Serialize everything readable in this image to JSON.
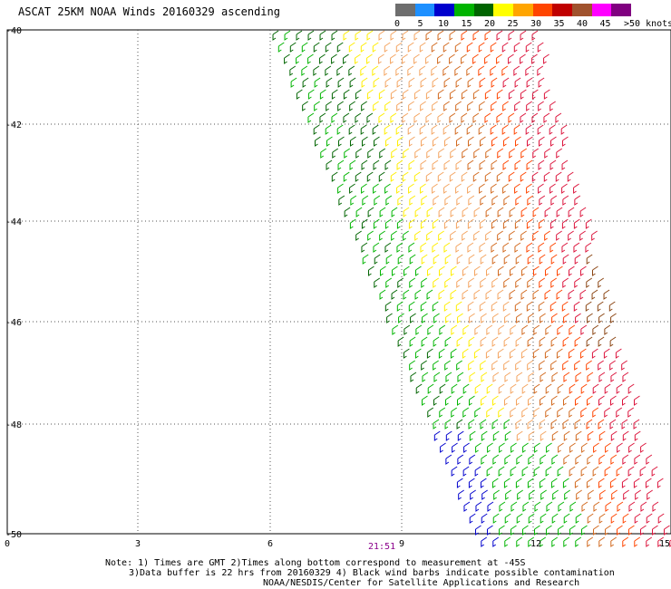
{
  "title": "ASCAT 25KM NOAA Winds 20160329 ascending",
  "legend": {
    "labels": [
      "0",
      "5",
      "10",
      "15",
      "20",
      "25",
      "30",
      "35",
      "40",
      "45"
    ],
    "unit": ">50 knots",
    "colors": [
      "#6e6e6e",
      "#1e90ff",
      "#0000cd",
      "#00b400",
      "#006400",
      "#ffff00",
      "#ffa500",
      "#ff4500",
      "#c00000",
      "#a0522d",
      "#ff00ff",
      "#800080"
    ]
  },
  "latitudes": [
    "-40",
    "-42",
    "-44",
    "-46",
    "-48",
    "-50"
  ],
  "longitudes": [
    "0",
    "3",
    "6",
    "9",
    "12",
    "15"
  ],
  "time_label": "21:51",
  "notes": {
    "line1": "Note: 1) Times are GMT 2)Times along bottom correspond to measurement at -45S",
    "line2": "3)Data buffer is 22 hrs from 20160329 4) Black wind barbs indicate possible contamination",
    "line3": "NOAA/NESDIS/Center for Satellite Applications and Research"
  },
  "wind_colors": {
    "blue": "#0000cd",
    "green": "#00b400",
    "dark_green": "#006400",
    "yellow": "#ffee00",
    "light_orange": "#f4a460",
    "orange": "#d2691e",
    "red_orange": "#ff4500",
    "red": "#dc143c",
    "brown": "#8b4513",
    "magenta": "#cc00cc"
  }
}
